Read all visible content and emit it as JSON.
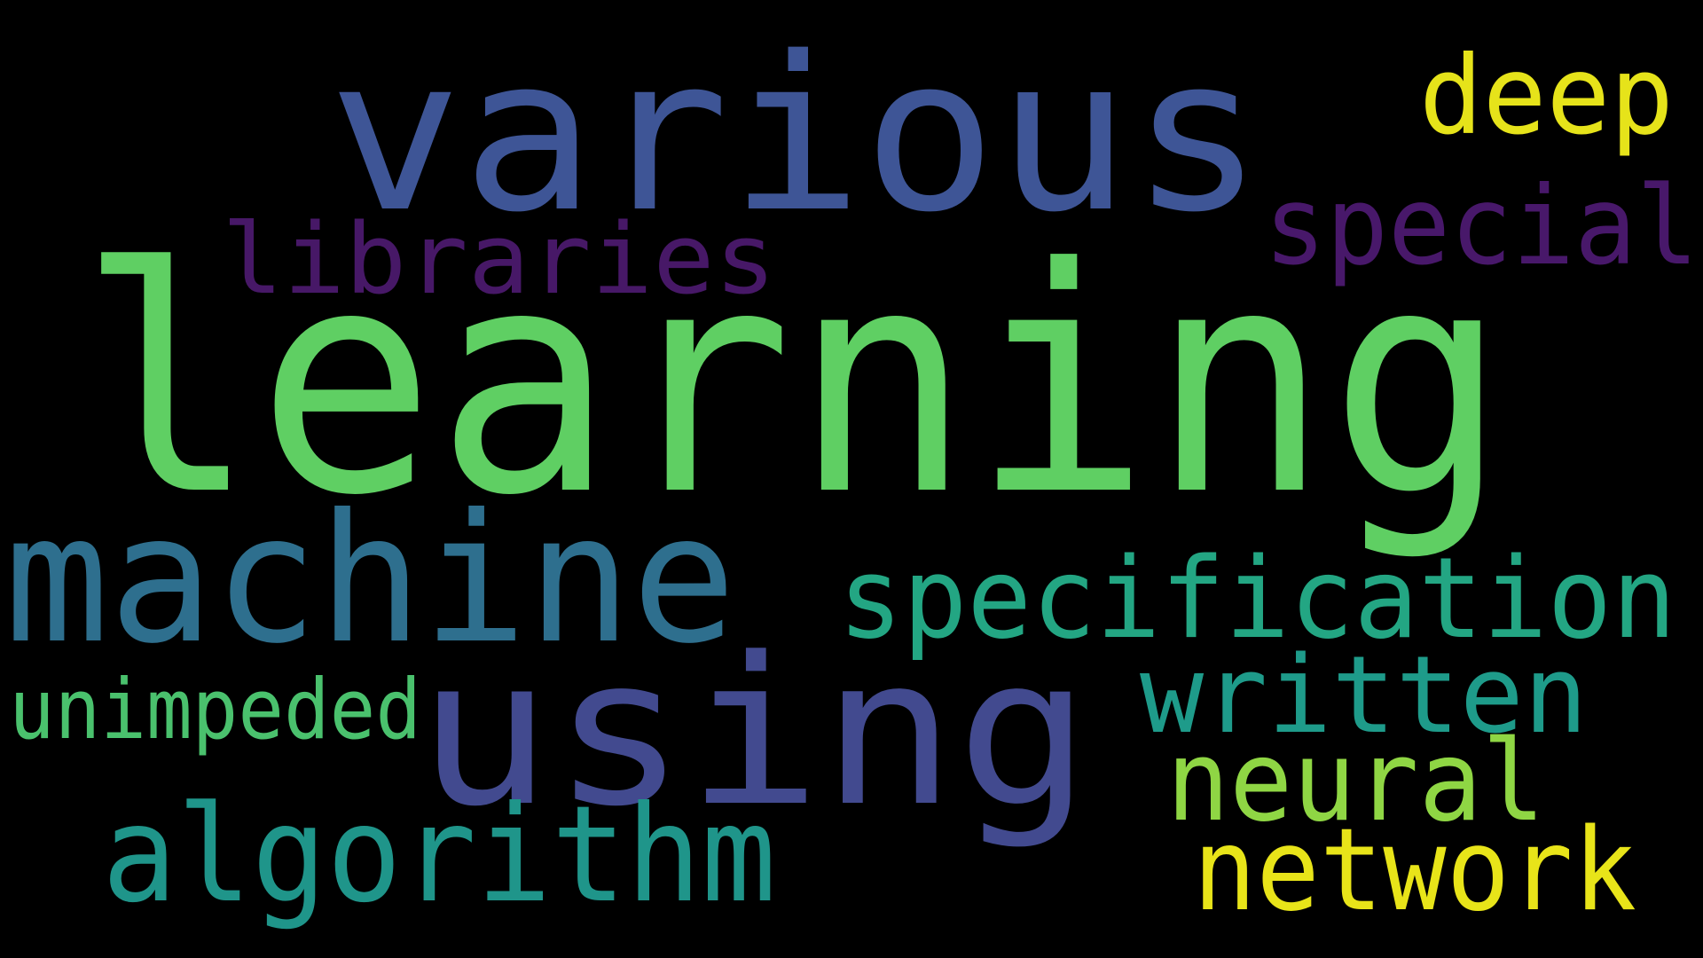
{
  "words": [
    {
      "id": "learning",
      "text": "learning",
      "color": "#5fcf63"
    },
    {
      "id": "various",
      "text": "various",
      "color": "#3e5596"
    },
    {
      "id": "machine",
      "text": "machine",
      "color": "#2e6f8e"
    },
    {
      "id": "using",
      "text": "using",
      "color": "#424a8f"
    },
    {
      "id": "specification",
      "text": "specification",
      "color": "#23a683"
    },
    {
      "id": "algorithm",
      "text": "algorithm",
      "color": "#1f958a"
    },
    {
      "id": "network",
      "text": "network",
      "color": "#e8e419"
    },
    {
      "id": "neural",
      "text": "neural",
      "color": "#8fd644"
    },
    {
      "id": "written",
      "text": "written",
      "color": "#1e9b8a"
    },
    {
      "id": "libraries",
      "text": "libraries",
      "color": "#471867"
    },
    {
      "id": "special",
      "text": "special",
      "color": "#48186a"
    },
    {
      "id": "deep",
      "text": "deep",
      "color": "#e6e31a"
    },
    {
      "id": "unimpeded",
      "text": "unimpeded",
      "color": "#4ac16d"
    }
  ]
}
